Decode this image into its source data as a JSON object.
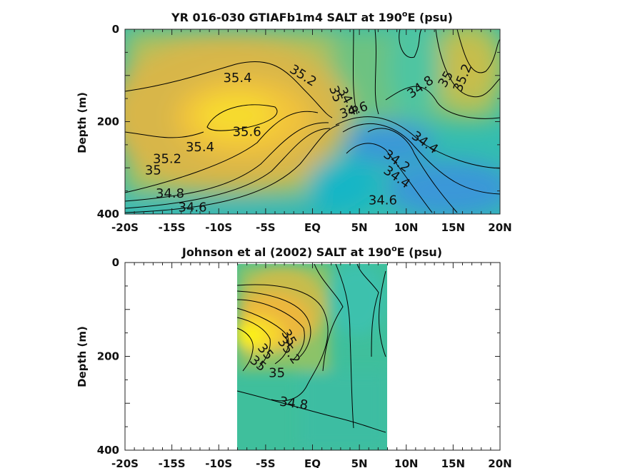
{
  "chart_data": [
    {
      "type": "heatmap",
      "title": "YR 016-030 GTIAFb1m4 SALT at 190",
      "title_sup": "o",
      "title_end": "E (psu)",
      "xlabel": "",
      "ylabel": "Depth (m)",
      "xlim": [
        -20,
        20
      ],
      "ylim": [
        0,
        400
      ],
      "x_ticks": [
        -20,
        -15,
        -10,
        -5,
        0,
        5,
        10,
        15,
        20
      ],
      "x_tick_labels": [
        "-20S",
        "-15S",
        "-10S",
        "-5S",
        "EQ",
        "5N",
        "10N",
        "15N",
        "20N"
      ],
      "y_ticks": [
        0,
        200,
        400
      ],
      "y_tick_labels": [
        "0",
        "200",
        "400"
      ],
      "data_extent": [
        -20,
        20
      ],
      "contour_labels": [
        {
          "text": "35.4",
          "x": -8.0,
          "y": 105,
          "angle": 0
        },
        {
          "text": "35.2",
          "x": -1.0,
          "y": 100,
          "angle": 32
        },
        {
          "text": "35.6",
          "x": -7.0,
          "y": 222,
          "angle": 0
        },
        {
          "text": "35",
          "x": 2.5,
          "y": 140,
          "angle": 70
        },
        {
          "text": "34.8",
          "x": 3.8,
          "y": 155,
          "angle": 62
        },
        {
          "text": "34.6",
          "x": 4.4,
          "y": 175,
          "angle": -18
        },
        {
          "text": "34.8",
          "x": 11.5,
          "y": 125,
          "angle": -35
        },
        {
          "text": "35",
          "x": 14.2,
          "y": 108,
          "angle": -60
        },
        {
          "text": "35.2",
          "x": 16.0,
          "y": 105,
          "angle": -68
        },
        {
          "text": "35.4",
          "x": -12.0,
          "y": 255,
          "angle": 0
        },
        {
          "text": "35.2",
          "x": -15.5,
          "y": 280,
          "angle": 0
        },
        {
          "text": "35",
          "x": -17.0,
          "y": 305,
          "angle": 0
        },
        {
          "text": "34.8",
          "x": -15.2,
          "y": 355,
          "angle": 0
        },
        {
          "text": "34.6",
          "x": -12.8,
          "y": 385,
          "angle": 0
        },
        {
          "text": "34.4",
          "x": 12.0,
          "y": 245,
          "angle": 35
        },
        {
          "text": "34.2",
          "x": 9.0,
          "y": 285,
          "angle": 35
        },
        {
          "text": "34.4",
          "x": 9.0,
          "y": 320,
          "angle": 35
        },
        {
          "text": "34.6",
          "x": 7.5,
          "y": 370,
          "angle": 0
        }
      ]
    },
    {
      "type": "heatmap",
      "title": "Johnson et al (2002) SALT at 190",
      "title_sup": "o",
      "title_end": "E (psu)",
      "xlabel": "",
      "ylabel": "Depth (m)",
      "xlim": [
        -20,
        20
      ],
      "ylim": [
        0,
        400
      ],
      "x_ticks": [
        -20,
        -15,
        -10,
        -5,
        0,
        5,
        10,
        15,
        20
      ],
      "x_tick_labels": [
        "-20S",
        "-15S",
        "-10S",
        "-5S",
        "EQ",
        "5N",
        "10N",
        "15N",
        "20N"
      ],
      "y_ticks": [
        0,
        200,
        400
      ],
      "y_tick_labels": [
        "0",
        "200",
        "400"
      ],
      "data_extent": [
        -8,
        8
      ],
      "contour_labels": [
        {
          "text": "35",
          "x": -2.5,
          "y": 160,
          "angle": 60
        },
        {
          "text": "35.2",
          "x": -2.5,
          "y": 188,
          "angle": 55
        },
        {
          "text": "35",
          "x": -3.8,
          "y": 235,
          "angle": 0
        },
        {
          "text": "35",
          "x": -5.0,
          "y": 190,
          "angle": 50
        },
        {
          "text": "35",
          "x": -5.8,
          "y": 215,
          "angle": 40
        },
        {
          "text": "34.8",
          "x": -2.0,
          "y": 300,
          "angle": 8
        }
      ]
    }
  ]
}
